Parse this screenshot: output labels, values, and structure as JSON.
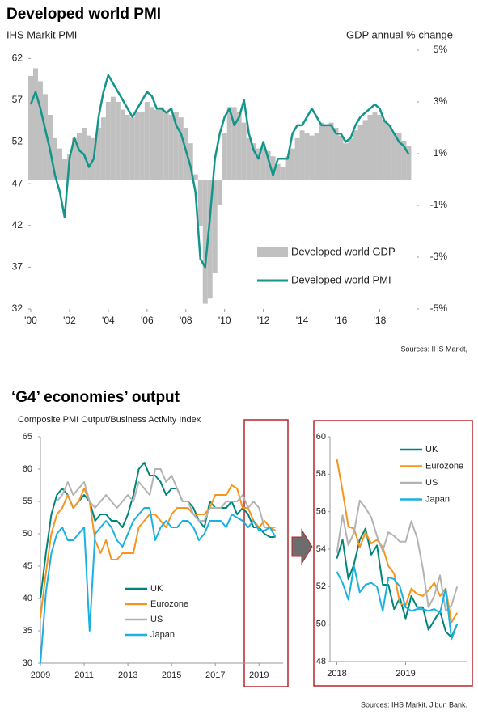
{
  "chart_data": [
    {
      "type": "combo",
      "title": "Developed world PMI",
      "ylabel": "IHS Markit  PMI",
      "y2label": "GDP annual % change",
      "source": "Sources: IHS Markit,",
      "x": [
        2000,
        2000.25,
        2000.5,
        2000.75,
        2001,
        2001.25,
        2001.5,
        2001.75,
        2002,
        2002.25,
        2002.5,
        2002.75,
        2003,
        2003.25,
        2003.5,
        2003.75,
        2004,
        2004.25,
        2004.5,
        2004.75,
        2005,
        2005.25,
        2005.5,
        2005.75,
        2006,
        2006.25,
        2006.5,
        2006.75,
        2007,
        2007.25,
        2007.5,
        2007.75,
        2008,
        2008.25,
        2008.5,
        2008.75,
        2009,
        2009.25,
        2009.5,
        2009.75,
        2010,
        2010.25,
        2010.5,
        2010.75,
        2011,
        2011.25,
        2011.5,
        2011.75,
        2012,
        2012.25,
        2012.5,
        2012.75,
        2013,
        2013.25,
        2013.5,
        2013.75,
        2014,
        2014.25,
        2014.5,
        2014.75,
        2015,
        2015.25,
        2015.5,
        2015.75,
        2016,
        2016.25,
        2016.5,
        2016.75,
        2017,
        2017.25,
        2017.5,
        2017.75,
        2018,
        2018.25,
        2018.5,
        2018.75,
        2019,
        2019.25,
        2019.5
      ],
      "xlim": [
        2000,
        2019.9
      ],
      "xticks": [
        {
          "value": 2000,
          "label": "'00"
        },
        {
          "value": 2002,
          "label": "'02"
        },
        {
          "value": 2004,
          "label": "'04"
        },
        {
          "value": 2006,
          "label": "'06"
        },
        {
          "value": 2008,
          "label": "'08"
        },
        {
          "value": 2010,
          "label": "'10"
        },
        {
          "value": 2012,
          "label": "'12"
        },
        {
          "value": 2014,
          "label": "'14"
        },
        {
          "value": 2016,
          "label": "'16"
        },
        {
          "value": 2018,
          "label": "'18"
        }
      ],
      "ylim": [
        32,
        63
      ],
      "yticks": [
        32,
        37,
        42,
        47,
        52,
        57,
        62
      ],
      "y2lim": [
        -5,
        5
      ],
      "y2ticks": [
        {
          "value": -5,
          "label": "-5%"
        },
        {
          "value": -3,
          "label": "-3%"
        },
        {
          "value": -1,
          "label": "-1%"
        },
        {
          "value": 1,
          "label": "1%"
        },
        {
          "value": 3,
          "label": "3%"
        },
        {
          "value": 5,
          "label": "5%"
        }
      ],
      "legend": "lower right",
      "series": [
        {
          "name": "Developed world GDP",
          "type": "bar",
          "axis": "y2",
          "color": "#c0c0c0",
          "values": [
            4,
            4.3,
            3.8,
            3.3,
            2.5,
            1.6,
            1.2,
            0.8,
            1,
            1.6,
            1.8,
            2,
            1.7,
            1.6,
            2,
            2.4,
            3,
            3.2,
            3,
            2.7,
            2.5,
            2.4,
            2.6,
            2.6,
            3,
            2.8,
            2.7,
            2.8,
            2.6,
            2.5,
            2.6,
            2.4,
            2,
            1.4,
            0.2,
            -1.8,
            -4.8,
            -4.6,
            -3.6,
            -1,
            1.8,
            2.8,
            2.8,
            2.6,
            2.2,
            1.6,
            1.4,
            1.2,
            1.3,
            1.1,
            0.9,
            0.6,
            0.5,
            0.9,
            1.2,
            1.6,
            1.9,
            1.8,
            1.7,
            1.8,
            2.2,
            2.1,
            2.2,
            2,
            1.7,
            1.4,
            1.6,
            1.9,
            2.1,
            2.3,
            2.5,
            2.6,
            2.5,
            2.3,
            2.1,
            1.8,
            1.8,
            1.5,
            1.3
          ]
        },
        {
          "name": "Developed world PMI",
          "type": "line",
          "color": "#13958a",
          "values": [
            56.5,
            58,
            56,
            53.5,
            51,
            48,
            46,
            43,
            50,
            52.5,
            51,
            50.5,
            49,
            50,
            55,
            58,
            60,
            59,
            58,
            57,
            56,
            55,
            56,
            57,
            58,
            57.5,
            56,
            56,
            55.5,
            56,
            54,
            53,
            51,
            49,
            46,
            38,
            37,
            43,
            50,
            53,
            55,
            56,
            54,
            55,
            57,
            53,
            51,
            50,
            52,
            50,
            48,
            50,
            50,
            50,
            53,
            54,
            54,
            55,
            56,
            55,
            54,
            54,
            54,
            53,
            53,
            52,
            52.5,
            54,
            55,
            55.5,
            56,
            56.5,
            56,
            54.5,
            54,
            53,
            52,
            51.5,
            50.5
          ]
        }
      ]
    },
    {
      "type": "line",
      "title": "‘G4’ economies’ output",
      "subtitle": "Composite PMI Output/Business Activity Index",
      "x": [
        2009,
        2009.25,
        2009.5,
        2009.75,
        2010,
        2010.25,
        2010.5,
        2010.75,
        2011,
        2011.25,
        2011.5,
        2011.75,
        2012,
        2012.25,
        2012.5,
        2012.75,
        2013,
        2013.25,
        2013.5,
        2013.75,
        2014,
        2014.25,
        2014.5,
        2014.75,
        2015,
        2015.25,
        2015.5,
        2015.75,
        2016,
        2016.25,
        2016.5,
        2016.75,
        2017,
        2017.25,
        2017.5,
        2017.75,
        2018,
        2018.25,
        2018.5,
        2018.75,
        2019,
        2019.25,
        2019.5,
        2019.75
      ],
      "xlim": [
        2009,
        2020.1
      ],
      "xticks": [
        2009,
        2011,
        2013,
        2015,
        2017,
        2019
      ],
      "ylim": [
        30,
        65
      ],
      "yticks": [
        30,
        35,
        40,
        45,
        50,
        55,
        60,
        65
      ],
      "legend": "lower center",
      "series": [
        {
          "name": "UK",
          "color": "#00857a",
          "values": [
            40,
            47,
            53,
            56,
            57,
            56,
            54,
            55,
            56,
            55,
            52,
            53,
            53,
            52,
            52,
            51,
            53,
            56,
            60,
            61,
            59,
            59,
            58,
            56,
            57,
            57,
            55,
            55,
            54,
            52,
            51,
            55,
            54,
            54,
            54,
            55,
            53,
            54,
            53,
            51,
            51,
            50,
            49.5,
            49.5
          ]
        },
        {
          "name": "Eurozone",
          "color": "#f7941d",
          "values": [
            37,
            44,
            50,
            53,
            54,
            56,
            54,
            55,
            57,
            55,
            49,
            47,
            49,
            46,
            46,
            47,
            47,
            47,
            51,
            52,
            53,
            53,
            52,
            51,
            53,
            54,
            54,
            54,
            53,
            53,
            53,
            54,
            56,
            56,
            56,
            57.5,
            57,
            54,
            54,
            52,
            51,
            52,
            51,
            50.5
          ]
        },
        {
          "name": "US",
          "color": "#b3b3b3",
          "values": [
            null,
            null,
            null,
            55,
            56,
            58,
            56,
            57,
            58,
            55,
            54,
            55,
            56,
            55,
            54,
            55,
            56,
            55,
            58,
            57,
            56,
            60,
            60,
            58,
            59,
            57,
            55,
            55,
            53,
            52,
            52,
            54,
            54,
            54,
            55,
            55,
            55,
            56,
            54,
            55,
            54,
            51,
            51,
            51
          ]
        },
        {
          "name": "Japan",
          "color": "#1ab0e0",
          "values": [
            30,
            41,
            47,
            50,
            51,
            49,
            49,
            50,
            51,
            35,
            50,
            51,
            52,
            51,
            49,
            48,
            50,
            52,
            53,
            54,
            54,
            49,
            51,
            52,
            51,
            51,
            52,
            52,
            51,
            49,
            50,
            52,
            52,
            52,
            51,
            53,
            52.5,
            52,
            51,
            52,
            50.5,
            50.5,
            51,
            49.5
          ]
        }
      ]
    },
    {
      "type": "line",
      "source": "Sources: IHS Markit, Jibun Bank.",
      "x": [
        2018,
        2018.083,
        2018.167,
        2018.25,
        2018.333,
        2018.417,
        2018.5,
        2018.583,
        2018.667,
        2018.75,
        2018.833,
        2018.917,
        2019,
        2019.083,
        2019.167,
        2019.25,
        2019.333,
        2019.417,
        2019.5,
        2019.583,
        2019.667,
        2019.75
      ],
      "xlim": [
        2017.9,
        2019.9
      ],
      "xticks": [
        2018,
        2019
      ],
      "ylim": [
        48,
        60
      ],
      "yticks": [
        48,
        50,
        52,
        54,
        56,
        58,
        60
      ],
      "legend": "upper right",
      "series": [
        {
          "name": "UK",
          "color": "#00857a",
          "values": [
            53.5,
            54.5,
            52.4,
            53.2,
            54.5,
            55.1,
            53.7,
            54.2,
            52.1,
            52.1,
            50.8,
            51.4,
            50.3,
            51.5,
            50.9,
            50.9,
            49.7,
            50.2,
            50.7,
            49.6,
            49.3,
            50
          ]
        },
        {
          "name": "Eurozone",
          "color": "#f7941d",
          "values": [
            58.8,
            57.1,
            55.2,
            55.1,
            54.1,
            54.9,
            54.3,
            54.5,
            54.1,
            53.1,
            52.7,
            51.1,
            51,
            51.9,
            51.6,
            51.5,
            51.8,
            52.2,
            51.5,
            51.9,
            50.1,
            50.6
          ]
        },
        {
          "name": "US",
          "color": "#b3b3b3",
          "values": [
            53.8,
            55.8,
            54.2,
            54.9,
            56.6,
            56.2,
            55.7,
            54.7,
            53.9,
            54.9,
            54.7,
            54.4,
            54.4,
            55.5,
            54.6,
            53,
            50.9,
            51.5,
            52.6,
            50.7,
            51,
            52
          ]
        },
        {
          "name": "Japan",
          "color": "#1ab0e0",
          "values": [
            52.8,
            52.2,
            51.3,
            53.1,
            51.7,
            52.1,
            52.2,
            52,
            50.7,
            52.5,
            52.4,
            52,
            50.9,
            50.7,
            50.8,
            50.8,
            50.7,
            50.8,
            50.6,
            51.9,
            49.2,
            50
          ]
        }
      ]
    }
  ]
}
